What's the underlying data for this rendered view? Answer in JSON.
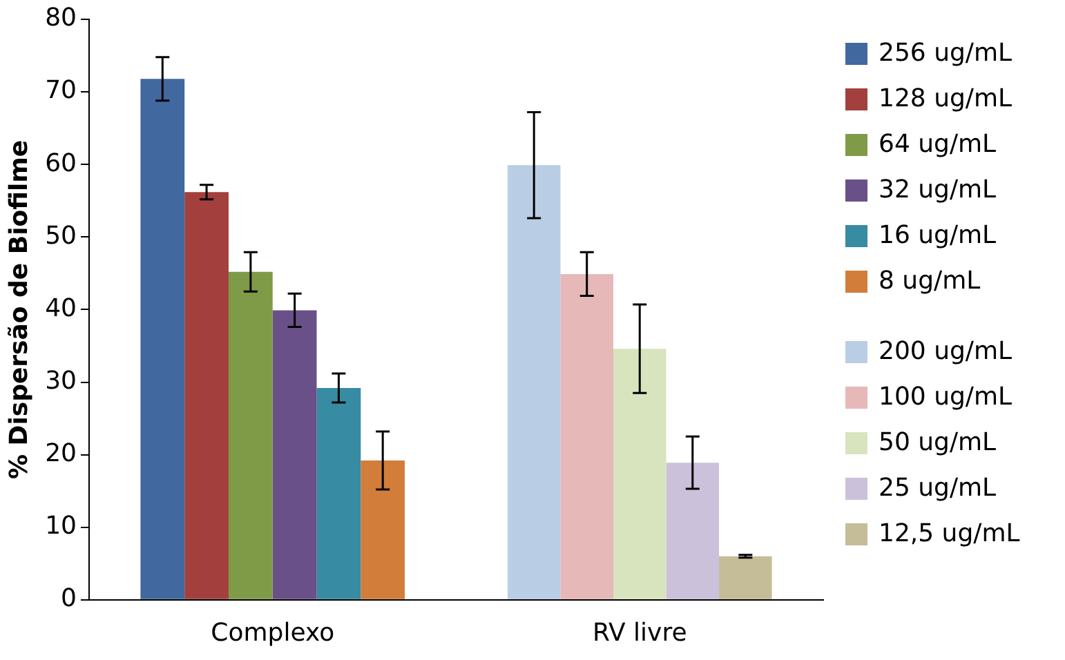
{
  "chart_data": {
    "type": "bar",
    "ylabel": "% Dispersão de Biofilme",
    "categories": [
      "Complexo",
      "RV livre"
    ],
    "ylim": [
      0,
      80
    ],
    "yticks": [
      0,
      10,
      20,
      30,
      40,
      50,
      60,
      70,
      80
    ],
    "grid": false,
    "legend": "right",
    "series": [
      {
        "name": "256 ug/mL",
        "color": "#4169a0",
        "values": [
          71.8,
          null
        ],
        "errors": [
          3,
          null
        ]
      },
      {
        "name": "128 ug/mL",
        "color": "#a3403d",
        "values": [
          56.2,
          null
        ],
        "errors": [
          1,
          null
        ]
      },
      {
        "name": "64 ug/mL",
        "color": "#7f9b48",
        "values": [
          45.2,
          null
        ],
        "errors": [
          2.7,
          null
        ]
      },
      {
        "name": "32 ug/mL",
        "color": "#6a5088",
        "values": [
          39.9,
          null
        ],
        "errors": [
          2.3,
          null
        ]
      },
      {
        "name": "16 ug/mL",
        "color": "#378ba2",
        "values": [
          29.2,
          null
        ],
        "errors": [
          2,
          null
        ]
      },
      {
        "name": "8 ug/mL",
        "color": "#d27d3a",
        "values": [
          19.2,
          null
        ],
        "errors": [
          4,
          null
        ]
      },
      {
        "name": "200 ug/mL",
        "color": "#b9cde5",
        "values": [
          null,
          59.9
        ],
        "errors": [
          null,
          7.3
        ]
      },
      {
        "name": "100 ug/mL",
        "color": "#e6b9b8",
        "values": [
          null,
          44.9
        ],
        "errors": [
          null,
          3
        ]
      },
      {
        "name": "50 ug/mL",
        "color": "#d7e4bd",
        "values": [
          null,
          34.6
        ],
        "errors": [
          null,
          6.1
        ]
      },
      {
        "name": "25 ug/mL",
        "color": "#ccc1da",
        "values": [
          null,
          18.9
        ],
        "errors": [
          null,
          3.6
        ]
      },
      {
        "name": "12,5 ug/mL",
        "color": "#c4bd97",
        "values": [
          null,
          6
        ],
        "errors": [
          null,
          0.2
        ]
      }
    ]
  }
}
